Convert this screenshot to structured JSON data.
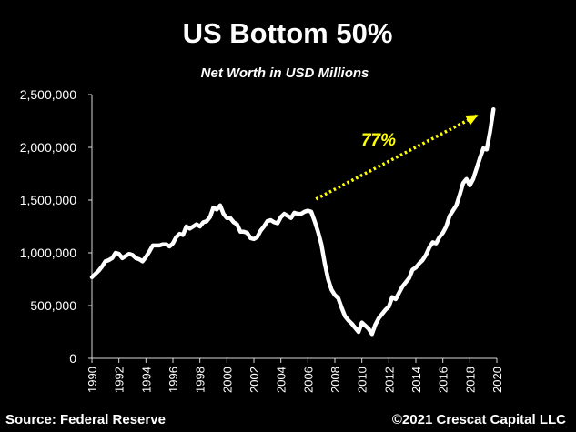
{
  "chart_data": {
    "type": "line",
    "title": "US Bottom 50%",
    "subtitle": "Net Worth in USD Millions",
    "xlabel": "",
    "ylabel": "",
    "xlim": [
      1990,
      2020
    ],
    "ylim": [
      0,
      2500000
    ],
    "y_ticks": [
      0,
      500000,
      1000000,
      1500000,
      2000000,
      2500000
    ],
    "y_tick_labels": [
      "0",
      "500,000",
      "1,000,000",
      "1,500,000",
      "2,000,000",
      "2,500,000"
    ],
    "x_ticks": [
      1990,
      1992,
      1994,
      1996,
      1998,
      2000,
      2002,
      2004,
      2006,
      2008,
      2010,
      2012,
      2014,
      2016,
      2018,
      2020
    ],
    "x_tick_labels": [
      "1990",
      "1992",
      "1994",
      "1996",
      "1998",
      "2000",
      "2002",
      "2004",
      "2006",
      "2008",
      "2010",
      "2012",
      "2014",
      "2016",
      "2018",
      "2020"
    ],
    "grid": false,
    "line_color": "#ffffff",
    "x": [
      1990.0,
      1990.25,
      1990.5,
      1990.75,
      1991.0,
      1991.25,
      1991.5,
      1991.75,
      1992.0,
      1992.25,
      1992.5,
      1992.75,
      1993.0,
      1993.25,
      1993.5,
      1993.75,
      1994.0,
      1994.25,
      1994.5,
      1994.75,
      1995.0,
      1995.25,
      1995.5,
      1995.75,
      1996.0,
      1996.25,
      1996.5,
      1996.75,
      1997.0,
      1997.25,
      1997.5,
      1997.75,
      1998.0,
      1998.25,
      1998.5,
      1998.75,
      1999.0,
      1999.25,
      1999.5,
      1999.75,
      2000.0,
      2000.25,
      2000.5,
      2000.75,
      2001.0,
      2001.25,
      2001.5,
      2001.75,
      2002.0,
      2002.25,
      2002.5,
      2002.75,
      2003.0,
      2003.25,
      2003.5,
      2003.75,
      2004.0,
      2004.25,
      2004.5,
      2004.75,
      2005.0,
      2005.25,
      2005.5,
      2005.75,
      2006.0,
      2006.25,
      2006.5,
      2006.75,
      2007.0,
      2007.25,
      2007.5,
      2007.75,
      2008.0,
      2008.25,
      2008.5,
      2008.75,
      2009.0,
      2009.25,
      2009.5,
      2009.75,
      2010.0,
      2010.25,
      2010.5,
      2010.75,
      2011.0,
      2011.25,
      2011.5,
      2011.75,
      2012.0,
      2012.25,
      2012.5,
      2012.75,
      2013.0,
      2013.25,
      2013.5,
      2013.75,
      2014.0,
      2014.25,
      2014.5,
      2014.75,
      2015.0,
      2015.25,
      2015.5,
      2015.75,
      2016.0,
      2016.25,
      2016.5,
      2016.75,
      2017.0,
      2017.25,
      2017.5,
      2017.75,
      2018.0,
      2018.25,
      2018.5,
      2018.75,
      2019.0,
      2019.25,
      2019.5,
      2019.75
    ],
    "series": [
      {
        "values": [
          770000,
          800000,
          830000,
          870000,
          920000,
          930000,
          950000,
          1000000,
          990000,
          950000,
          970000,
          990000,
          980000,
          950000,
          940000,
          920000,
          960000,
          1010000,
          1070000,
          1070000,
          1070000,
          1080000,
          1080000,
          1060000,
          1090000,
          1150000,
          1180000,
          1170000,
          1250000,
          1230000,
          1250000,
          1270000,
          1250000,
          1290000,
          1300000,
          1340000,
          1430000,
          1410000,
          1450000,
          1370000,
          1330000,
          1330000,
          1290000,
          1270000,
          1200000,
          1200000,
          1190000,
          1140000,
          1130000,
          1150000,
          1210000,
          1250000,
          1300000,
          1310000,
          1290000,
          1280000,
          1340000,
          1370000,
          1350000,
          1330000,
          1380000,
          1370000,
          1370000,
          1390000,
          1400000,
          1390000,
          1300000,
          1200000,
          1080000,
          900000,
          750000,
          650000,
          600000,
          570000,
          480000,
          400000,
          360000,
          330000,
          290000,
          250000,
          340000,
          310000,
          280000,
          230000,
          320000,
          380000,
          420000,
          460000,
          490000,
          580000,
          560000,
          620000,
          680000,
          720000,
          760000,
          840000,
          860000,
          900000,
          930000,
          980000,
          1050000,
          1100000,
          1090000,
          1150000,
          1190000,
          1250000,
          1350000,
          1400000,
          1450000,
          1550000,
          1660000,
          1700000,
          1640000,
          1700000,
          1800000,
          1900000,
          1990000,
          1980000,
          2150000,
          2360000
        ]
      }
    ],
    "annotation": {
      "text": "77%",
      "color": "#ffff00",
      "arrow_from": [
        2006.6,
        1510000
      ],
      "arrow_to": [
        2018.5,
        2300000
      ]
    }
  },
  "footer": {
    "source": "Source: Federal Reserve",
    "copyright": "©2021 Crescat Capital LLC"
  }
}
